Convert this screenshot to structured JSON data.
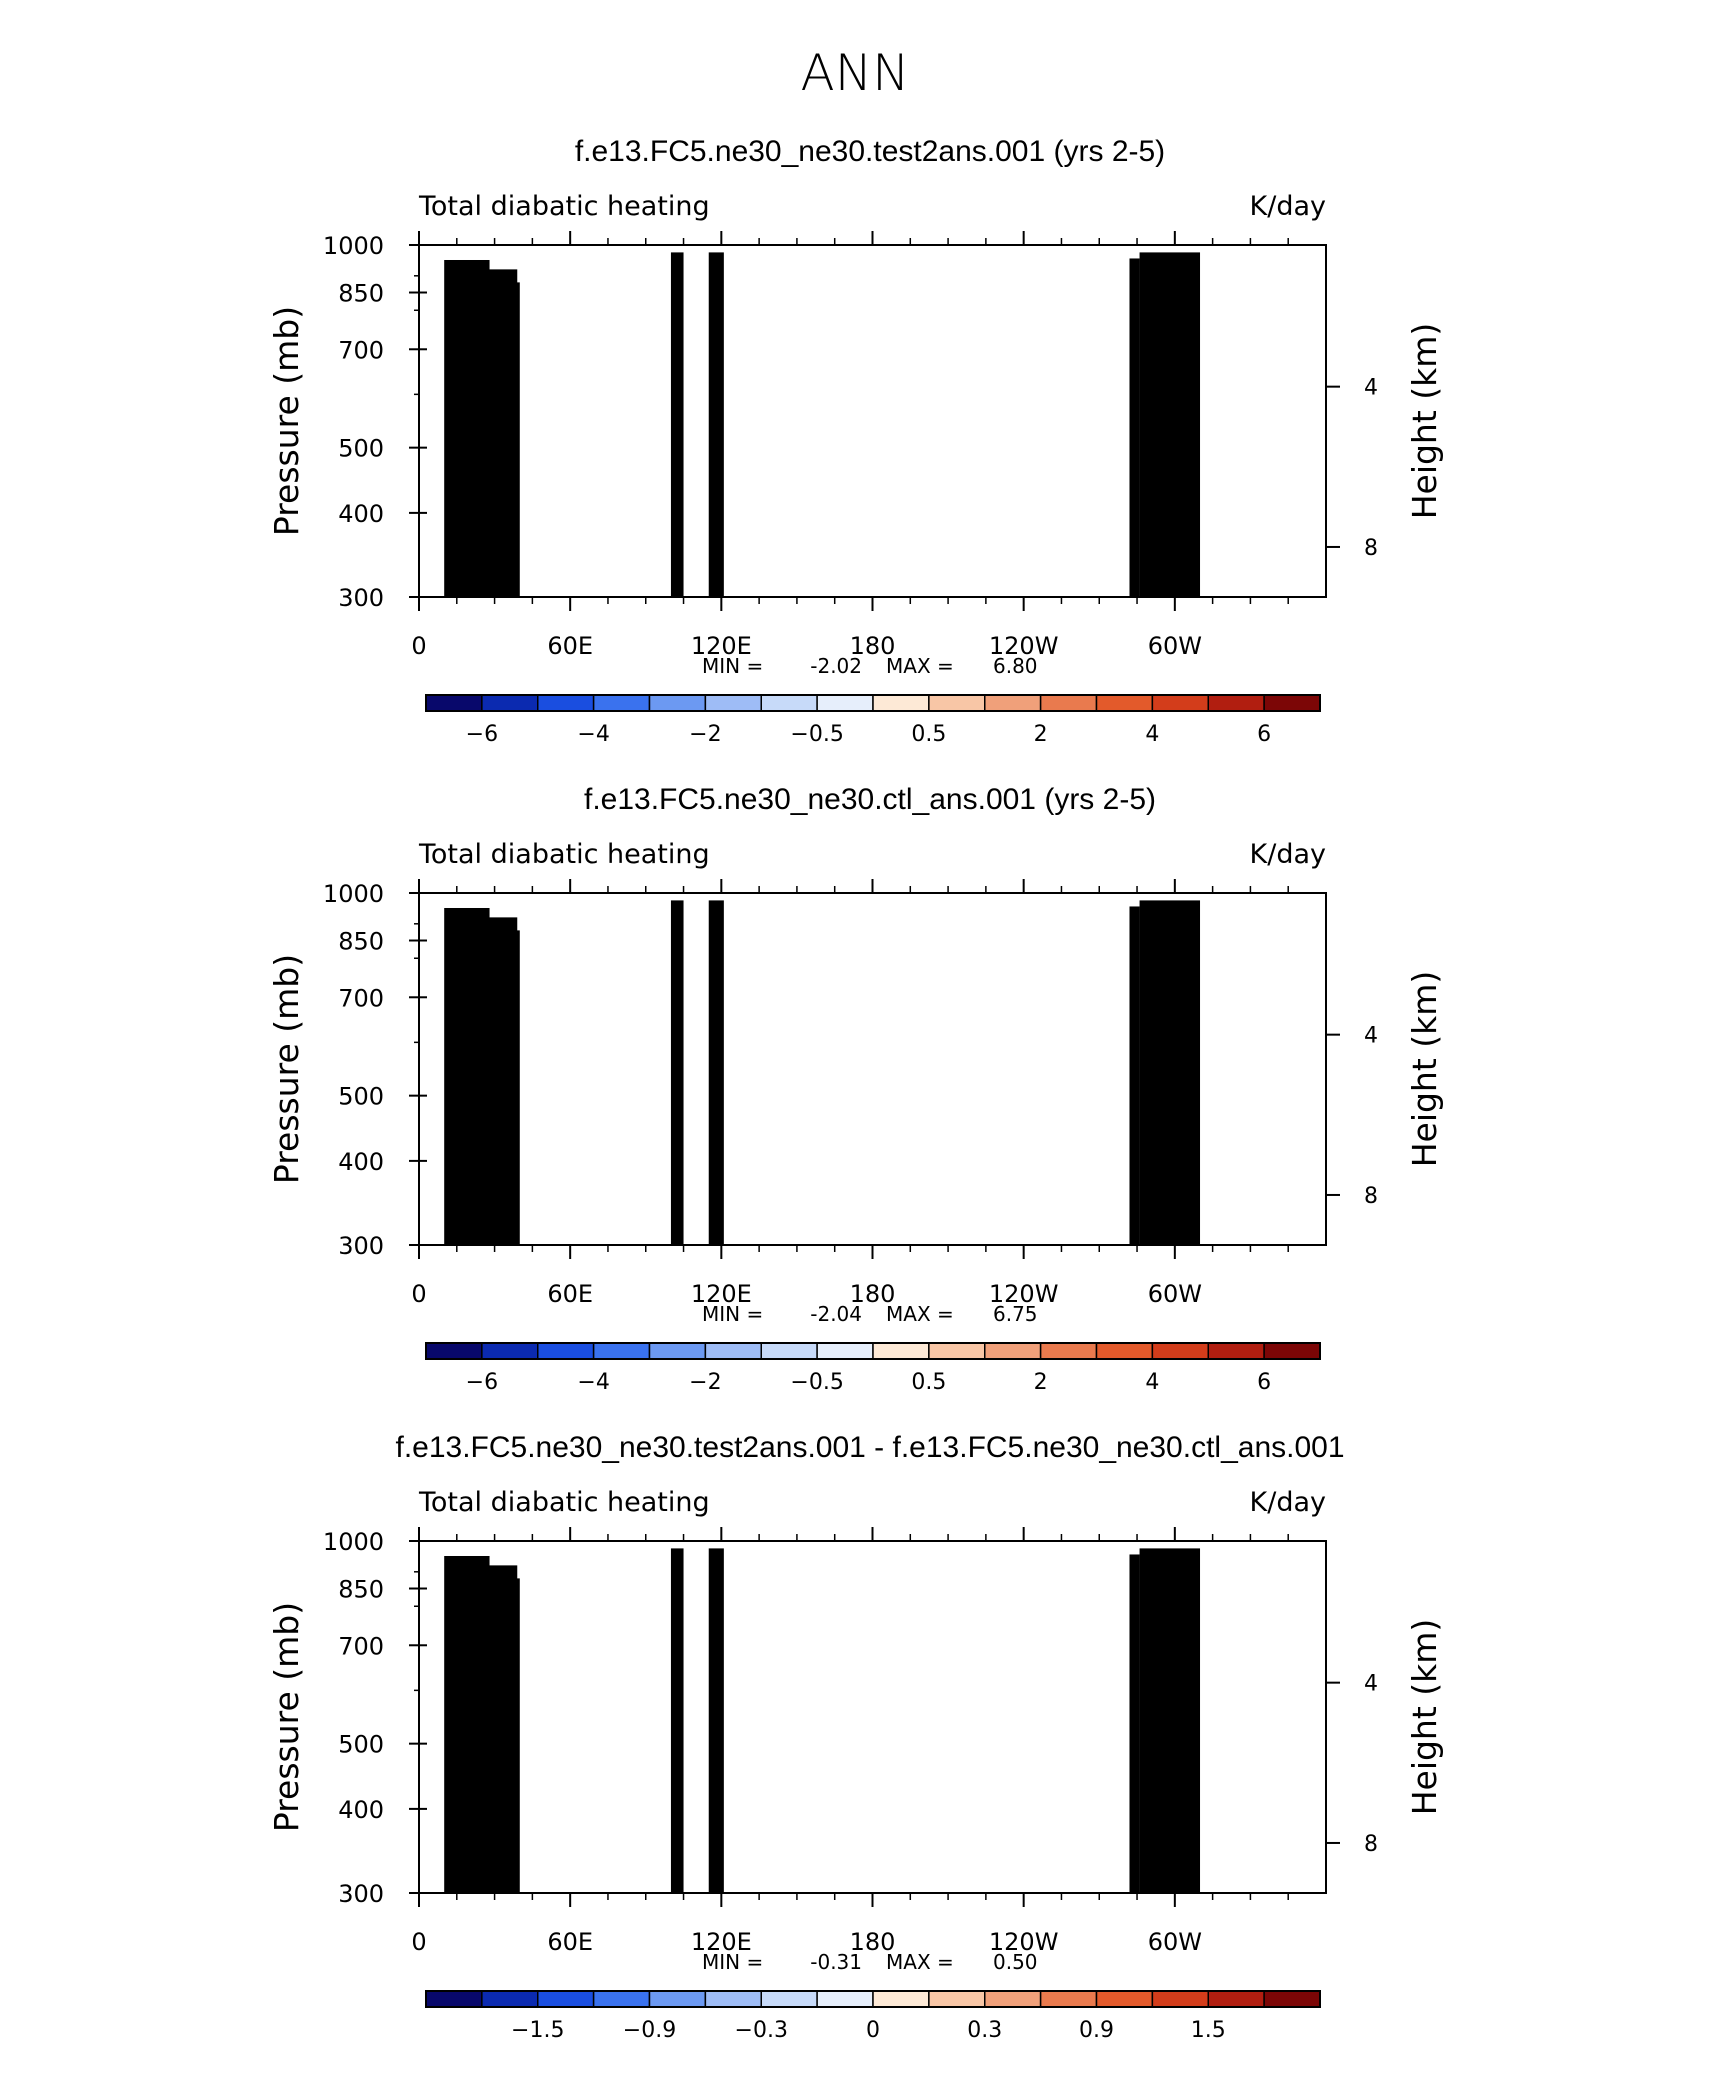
{
  "page_title": "ANN",
  "colors": {
    "palette": [
      "#08086b",
      "#0b2ab0",
      "#1a4ee0",
      "#3a72ee",
      "#6c99f2",
      "#9ebcf6",
      "#c7daf9",
      "#e6eefb",
      "#fde9d6",
      "#f8c6a6",
      "#f0a07a",
      "#e97a4e",
      "#e35a2b",
      "#d33d1b",
      "#b11e10",
      "#7c0606"
    ],
    "terrain": "#000000"
  },
  "chart_data": [
    {
      "type": "heatmap",
      "title": "f.e13.FC5.ne30_ne30.test2ans.001 (yrs 2-5)",
      "left_label": "Total diabatic heating",
      "right_label": "K/day",
      "ylabel": "Pressure (mb)",
      "ylabel_right": "Height (km)",
      "xlabels": [
        "0",
        "60E",
        "120E",
        "180",
        "120W",
        "60W"
      ],
      "xticks": [
        0,
        60,
        120,
        180,
        240,
        300
      ],
      "xlim": [
        0,
        360
      ],
      "yticks": [
        "300",
        "400",
        "500",
        "700",
        "850",
        "1000"
      ],
      "ylim": [
        1000,
        300
      ],
      "yscale": "log",
      "height_ticks": [
        "8",
        "4"
      ],
      "min_label": "MIN =",
      "min_value": "-2.02",
      "max_label": "MAX =",
      "max_value": "6.80",
      "colorbar_labels": [
        "-6",
        "-4",
        "-2",
        "-0.5",
        "0.5",
        "2",
        "4",
        "6"
      ],
      "amplitude": 1.0
    },
    {
      "type": "heatmap",
      "title": "f.e13.FC5.ne30_ne30.ctl_ans.001 (yrs 2-5)",
      "left_label": "Total diabatic heating",
      "right_label": "K/day",
      "ylabel": "Pressure (mb)",
      "ylabel_right": "Height (km)",
      "xlabels": [
        "0",
        "60E",
        "120E",
        "180",
        "120W",
        "60W"
      ],
      "xticks": [
        0,
        60,
        120,
        180,
        240,
        300
      ],
      "xlim": [
        0,
        360
      ],
      "yticks": [
        "300",
        "400",
        "500",
        "700",
        "850",
        "1000"
      ],
      "ylim": [
        1000,
        300
      ],
      "yscale": "log",
      "height_ticks": [
        "8",
        "4"
      ],
      "min_label": "MIN =",
      "min_value": "-2.04",
      "max_label": "MAX =",
      "max_value": "6.75",
      "colorbar_labels": [
        "-6",
        "-4",
        "-2",
        "-0.5",
        "0.5",
        "2",
        "4",
        "6"
      ],
      "amplitude": 1.0
    },
    {
      "type": "heatmap",
      "title": "f.e13.FC5.ne30_ne30.test2ans.001 - f.e13.FC5.ne30_ne30.ctl_ans.001",
      "left_label": "Total diabatic heating",
      "right_label": "K/day",
      "ylabel": "Pressure (mb)",
      "ylabel_right": "Height (km)",
      "xlabels": [
        "0",
        "60E",
        "120E",
        "180",
        "120W",
        "60W"
      ],
      "xticks": [
        0,
        60,
        120,
        180,
        240,
        300
      ],
      "xlim": [
        0,
        360
      ],
      "yticks": [
        "300",
        "400",
        "500",
        "700",
        "850",
        "1000"
      ],
      "ylim": [
        1000,
        300
      ],
      "yscale": "log",
      "height_ticks": [
        "8",
        "4"
      ],
      "min_label": "MIN =",
      "min_value": "-0.31",
      "max_label": "MAX =",
      "max_value": "0.50",
      "colorbar_labels": [
        "-1.5",
        "-0.9",
        "-0.3",
        "0",
        "0.3",
        "0.9",
        "1.5"
      ],
      "amplitude": 0.12
    }
  ]
}
